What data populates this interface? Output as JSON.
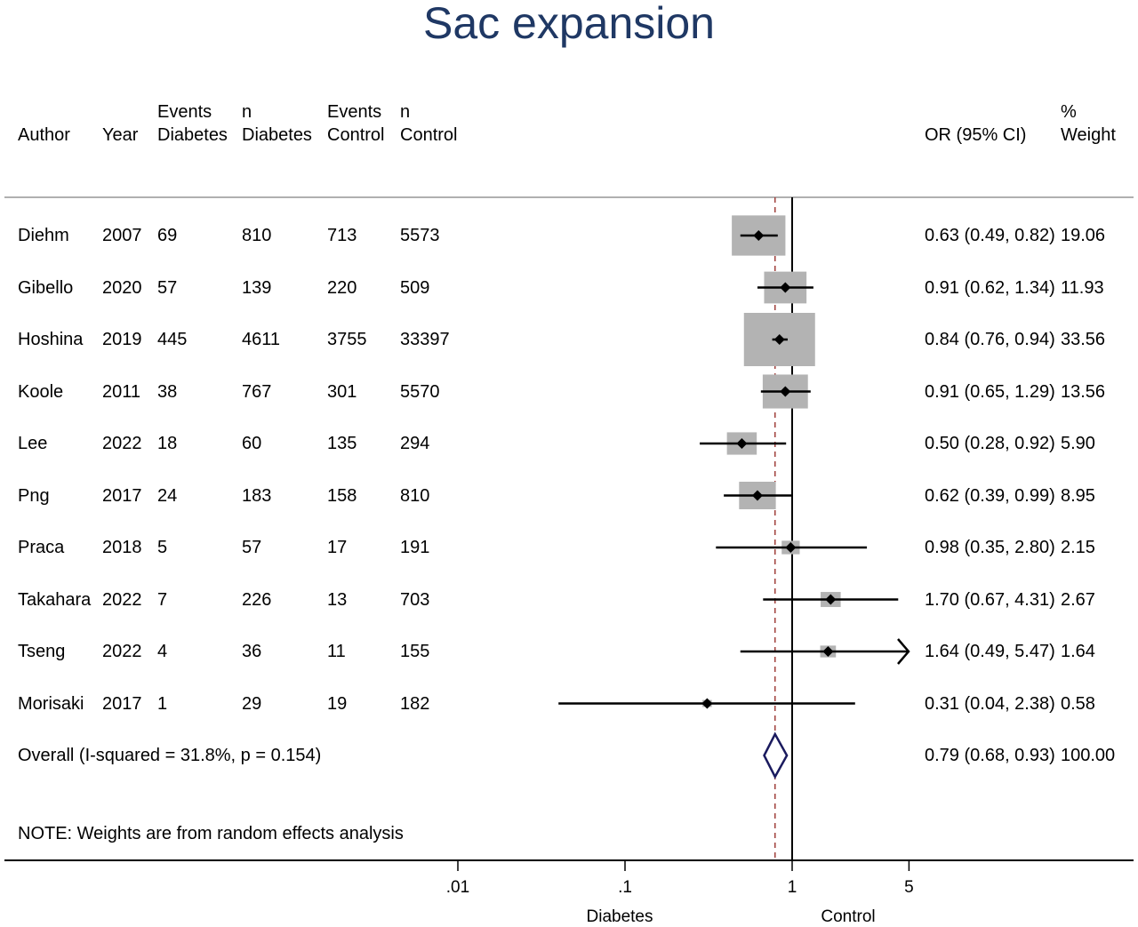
{
  "chart_data": {
    "type": "forest",
    "title": "Sac expansion",
    "headers": {
      "author": "Author",
      "year": "Year",
      "events_diabetes": [
        "Events",
        "Diabetes"
      ],
      "n_diabetes": [
        "n",
        "Diabetes"
      ],
      "events_control": [
        "Events",
        "Control"
      ],
      "n_control": [
        "n",
        "Control"
      ],
      "or_ci": "OR (95% CI)",
      "weight": [
        "%",
        "Weight"
      ]
    },
    "studies": [
      {
        "author": "Diehm",
        "year": "2007",
        "events_diabetes": "69",
        "n_diabetes": "810",
        "events_control": "713",
        "n_control": "5573",
        "or": 0.63,
        "lo": 0.49,
        "hi": 0.82,
        "or_ci_text": "0.63 (0.49, 0.82)",
        "weight": 19.06,
        "weight_text": "19.06"
      },
      {
        "author": "Gibello",
        "year": "2020",
        "events_diabetes": "57",
        "n_diabetes": "139",
        "events_control": "220",
        "n_control": "509",
        "or": 0.91,
        "lo": 0.62,
        "hi": 1.34,
        "or_ci_text": "0.91 (0.62, 1.34)",
        "weight": 11.93,
        "weight_text": "11.93"
      },
      {
        "author": "Hoshina",
        "year": "2019",
        "events_diabetes": "445",
        "n_diabetes": "4611",
        "events_control": "3755",
        "n_control": "33397",
        "or": 0.84,
        "lo": 0.76,
        "hi": 0.94,
        "or_ci_text": "0.84 (0.76, 0.94)",
        "weight": 33.56,
        "weight_text": "33.56"
      },
      {
        "author": "Koole",
        "year": "2011",
        "events_diabetes": "38",
        "n_diabetes": "767",
        "events_control": "301",
        "n_control": "5570",
        "or": 0.91,
        "lo": 0.65,
        "hi": 1.29,
        "or_ci_text": "0.91 (0.65, 1.29)",
        "weight": 13.56,
        "weight_text": "13.56"
      },
      {
        "author": "Lee",
        "year": "2022",
        "events_diabetes": "18",
        "n_diabetes": "60",
        "events_control": "135",
        "n_control": "294",
        "or": 0.5,
        "lo": 0.28,
        "hi": 0.92,
        "or_ci_text": "0.50 (0.28, 0.92)",
        "weight": 5.9,
        "weight_text": "5.90"
      },
      {
        "author": "Png",
        "year": "2017",
        "events_diabetes": "24",
        "n_diabetes": "183",
        "events_control": "158",
        "n_control": "810",
        "or": 0.62,
        "lo": 0.39,
        "hi": 0.99,
        "or_ci_text": "0.62 (0.39, 0.99)",
        "weight": 8.95,
        "weight_text": "8.95"
      },
      {
        "author": "Praca",
        "year": "2018",
        "events_diabetes": "5",
        "n_diabetes": "57",
        "events_control": "17",
        "n_control": "191",
        "or": 0.98,
        "lo": 0.35,
        "hi": 2.8,
        "or_ci_text": "0.98 (0.35, 2.80)",
        "weight": 2.15,
        "weight_text": "2.15"
      },
      {
        "author": "Takahara",
        "year": "2022",
        "events_diabetes": "7",
        "n_diabetes": "226",
        "events_control": "13",
        "n_control": "703",
        "or": 1.7,
        "lo": 0.67,
        "hi": 4.31,
        "or_ci_text": "1.70 (0.67, 4.31)",
        "weight": 2.67,
        "weight_text": "2.67"
      },
      {
        "author": "Tseng",
        "year": "2022",
        "events_diabetes": "4",
        "n_diabetes": "36",
        "events_control": "11",
        "n_control": "155",
        "or": 1.64,
        "lo": 0.49,
        "hi": 5.47,
        "or_ci_text": "1.64 (0.49, 5.47)",
        "weight": 1.64,
        "weight_text": "1.64"
      },
      {
        "author": "Morisaki",
        "year": "2017",
        "events_diabetes": "1",
        "n_diabetes": "29",
        "events_control": "19",
        "n_control": "182",
        "or": 0.31,
        "lo": 0.04,
        "hi": 2.38,
        "or_ci_text": "0.31 (0.04, 2.38)",
        "weight": 0.58,
        "weight_text": "0.58"
      }
    ],
    "overall": {
      "label": "Overall  (I-squared = 31.8%, p = 0.154)",
      "or": 0.79,
      "lo": 0.68,
      "hi": 0.93,
      "or_ci_text": "0.79 (0.68, 0.93)",
      "weight_text": "100.00"
    },
    "note": "NOTE: Weights are from random effects analysis",
    "x_axis": {
      "scale": "log",
      "ticks": [
        0.01,
        0.1,
        1,
        5
      ],
      "tick_labels": [
        ".01",
        ".1",
        "1",
        "5"
      ],
      "left_label": "Diabetes",
      "right_label": "Control"
    },
    "colors": {
      "title": "#1f3864",
      "weight_box": "#b3b3b3",
      "diamond": "#1a1a5e",
      "overall_line": "#a0403c"
    }
  }
}
